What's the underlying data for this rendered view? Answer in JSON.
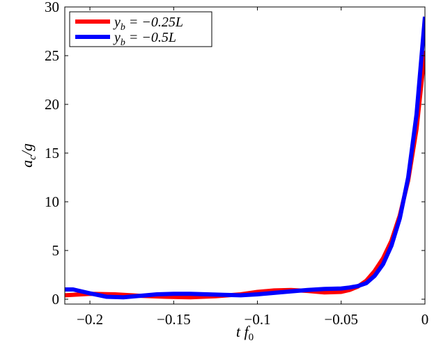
{
  "chart_data": {
    "type": "line",
    "title": "",
    "xlabel": "t f_0",
    "ylabel": "a_c / g",
    "xlim": [
      -0.215,
      0
    ],
    "ylim": [
      -0.5,
      30
    ],
    "x_ticks": [
      -0.2,
      -0.15,
      -0.1,
      -0.05,
      0
    ],
    "x_tick_labels": [
      "−0.2",
      "−0.15",
      "−0.1",
      "−0.05",
      "0"
    ],
    "y_ticks": [
      0,
      5,
      10,
      15,
      20,
      25,
      30
    ],
    "y_tick_labels": [
      "0",
      "5",
      "10",
      "15",
      "20",
      "25",
      "30"
    ],
    "grid": false,
    "legend_position": "top-left",
    "series": [
      {
        "name": "y_b = −0.25L",
        "color": "#ff0000",
        "x": [
          -0.215,
          -0.2,
          -0.185,
          -0.17,
          -0.155,
          -0.14,
          -0.125,
          -0.11,
          -0.1,
          -0.09,
          -0.08,
          -0.07,
          -0.06,
          -0.05,
          -0.045,
          -0.04,
          -0.035,
          -0.03,
          -0.025,
          -0.02,
          -0.015,
          -0.01,
          -0.005,
          0
        ],
        "y": [
          0.4,
          0.55,
          0.5,
          0.35,
          0.25,
          0.2,
          0.3,
          0.5,
          0.75,
          0.9,
          0.95,
          0.85,
          0.7,
          0.75,
          0.95,
          1.3,
          1.9,
          2.9,
          4.2,
          6.0,
          8.6,
          12.2,
          17.5,
          25.5
        ]
      },
      {
        "name": "y_b = −0.5L",
        "color": "#0000ff",
        "x": [
          -0.215,
          -0.21,
          -0.2,
          -0.19,
          -0.18,
          -0.17,
          -0.16,
          -0.15,
          -0.14,
          -0.13,
          -0.12,
          -0.11,
          -0.1,
          -0.09,
          -0.08,
          -0.07,
          -0.06,
          -0.05,
          -0.045,
          -0.04,
          -0.035,
          -0.03,
          -0.025,
          -0.02,
          -0.015,
          -0.01,
          -0.005,
          0
        ],
        "y": [
          1.0,
          1.0,
          0.6,
          0.25,
          0.2,
          0.35,
          0.5,
          0.55,
          0.55,
          0.5,
          0.45,
          0.4,
          0.5,
          0.65,
          0.8,
          0.95,
          1.05,
          1.1,
          1.2,
          1.35,
          1.65,
          2.4,
          3.6,
          5.5,
          8.3,
          12.5,
          19.0,
          29.0
        ]
      }
    ]
  }
}
